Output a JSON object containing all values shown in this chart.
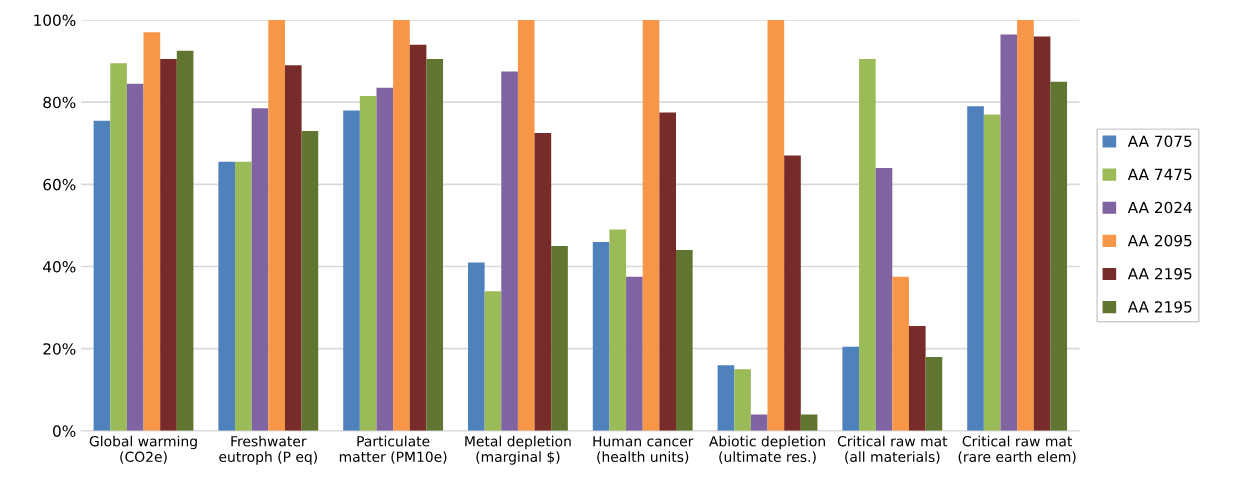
{
  "chart_data": {
    "type": "bar",
    "categories": [
      "Global warming\n(CO2e)",
      "Freshwater\neutroph (P eq)",
      "Particulate\nmatter (PM10e)",
      "Metal depletion\n(marginal $)",
      "Human cancer\n(health units)",
      "Abiotic depletion\n(ultimate res.)",
      "Critical raw mat\n(all materials)",
      "Critical raw mat\n(rare earth elem)"
    ],
    "series": [
      {
        "name": "AA 7075",
        "color": "#4f81bd",
        "values": [
          75.5,
          65.5,
          78,
          41,
          46,
          16,
          20.5,
          79
        ]
      },
      {
        "name": "AA 7475",
        "color": "#9bbb59",
        "values": [
          89.5,
          65.5,
          81.5,
          34,
          49,
          15,
          90.5,
          77
        ]
      },
      {
        "name": "AA 2024",
        "color": "#8064a2",
        "values": [
          84.5,
          78.5,
          83.5,
          87.5,
          37.5,
          4,
          64,
          96.5
        ]
      },
      {
        "name": "AA 2095",
        "color": "#f79646",
        "values": [
          97,
          100,
          100,
          100,
          100,
          100,
          37.5,
          100
        ]
      },
      {
        "name": "AA 2195",
        "color": "#772c2a",
        "values": [
          90.5,
          89,
          94,
          72.5,
          77.5,
          67,
          25.5,
          96
        ]
      },
      {
        "name": "AA 2195",
        "color": "#5f7530",
        "values": [
          92.5,
          73,
          90.5,
          45,
          44,
          4,
          18,
          85
        ]
      }
    ],
    "ylim": [
      0,
      100
    ],
    "yticks": [
      {
        "value": 0,
        "label": "0%"
      },
      {
        "value": 20,
        "label": "20%"
      },
      {
        "value": 40,
        "label": "40%"
      },
      {
        "value": 60,
        "label": "60%"
      },
      {
        "value": 80,
        "label": "80%"
      },
      {
        "value": 100,
        "label": "100%"
      }
    ],
    "grid": "y",
    "legend": "right"
  }
}
